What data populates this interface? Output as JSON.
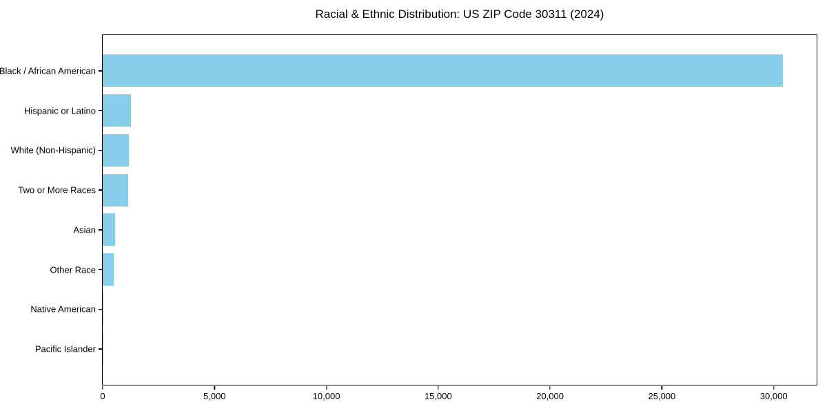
{
  "chart_data": {
    "type": "bar",
    "orientation": "horizontal",
    "title": "Racial & Ethnic Distribution: US ZIP Code 30311 (2024)",
    "categories": [
      "Black / African American",
      "Hispanic or Latino",
      "White (Non-Hispanic)",
      "Two or More Races",
      "Asian",
      "Other Race",
      "Native American",
      "Pacific Islander"
    ],
    "values": [
      30400,
      1260,
      1170,
      1140,
      550,
      490,
      30,
      10
    ],
    "xlabel": "",
    "ylabel": "",
    "xlim": [
      0,
      31920
    ],
    "xtick_values": [
      0,
      5000,
      10000,
      15000,
      20000,
      25000,
      30000
    ],
    "xtick_labels": [
      "0",
      "5,000",
      "10,000",
      "15,000",
      "20,000",
      "25,000",
      "30,000"
    ],
    "bar_color": "#87CEEB",
    "grid": false,
    "legend": "none",
    "background": "#FFFFFF"
  }
}
